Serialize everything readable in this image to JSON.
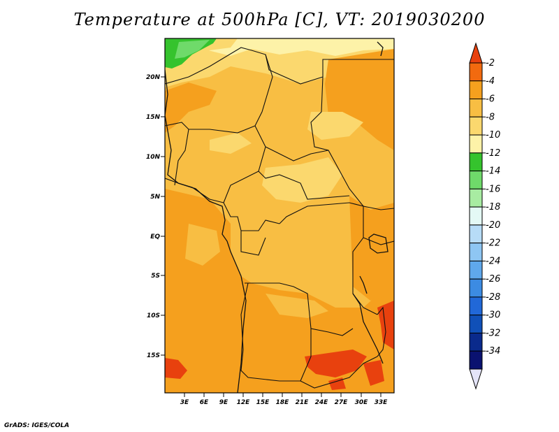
{
  "title": "Temperature at 500hPa [C], VT: 2019030200",
  "credit": "GrADS: IGES/COLA",
  "map": {
    "lat_labels": [
      "20N",
      "15N",
      "10N",
      "5N",
      "EQ",
      "5S",
      "10S",
      "15S"
    ],
    "lon_labels": [
      "3E",
      "6E",
      "9E",
      "12E",
      "15E",
      "18E",
      "21E",
      "24E",
      "27E",
      "30E",
      "33E"
    ]
  },
  "colorbar": {
    "levels": [
      "-2",
      "-4",
      "-6",
      "-8",
      "-10",
      "-12",
      "-14",
      "-16",
      "-18",
      "-20",
      "-22",
      "-24",
      "-26",
      "-28",
      "-30",
      "-32",
      "-34"
    ],
    "colors": [
      "#e8410e",
      "#f26a0f",
      "#f5a01e",
      "#f8be43",
      "#fbd86e",
      "#fdf2a8",
      "#35c32d",
      "#6fda6a",
      "#a8eca2",
      "#e4f9f5",
      "#b7dcf7",
      "#8ec6f3",
      "#5fa8ec",
      "#3c8be2",
      "#2168d8",
      "#1050b8",
      "#0a2a8c",
      "#0a1270",
      "#e4e4f8"
    ]
  },
  "field_colors": {
    "warm_orange": "#f5a01e",
    "light_orange": "#f8be43",
    "pale_yellow": "#fbd86e",
    "cream": "#fdf2a8",
    "green": "#35c32d",
    "red_orange": "#e8410e"
  }
}
